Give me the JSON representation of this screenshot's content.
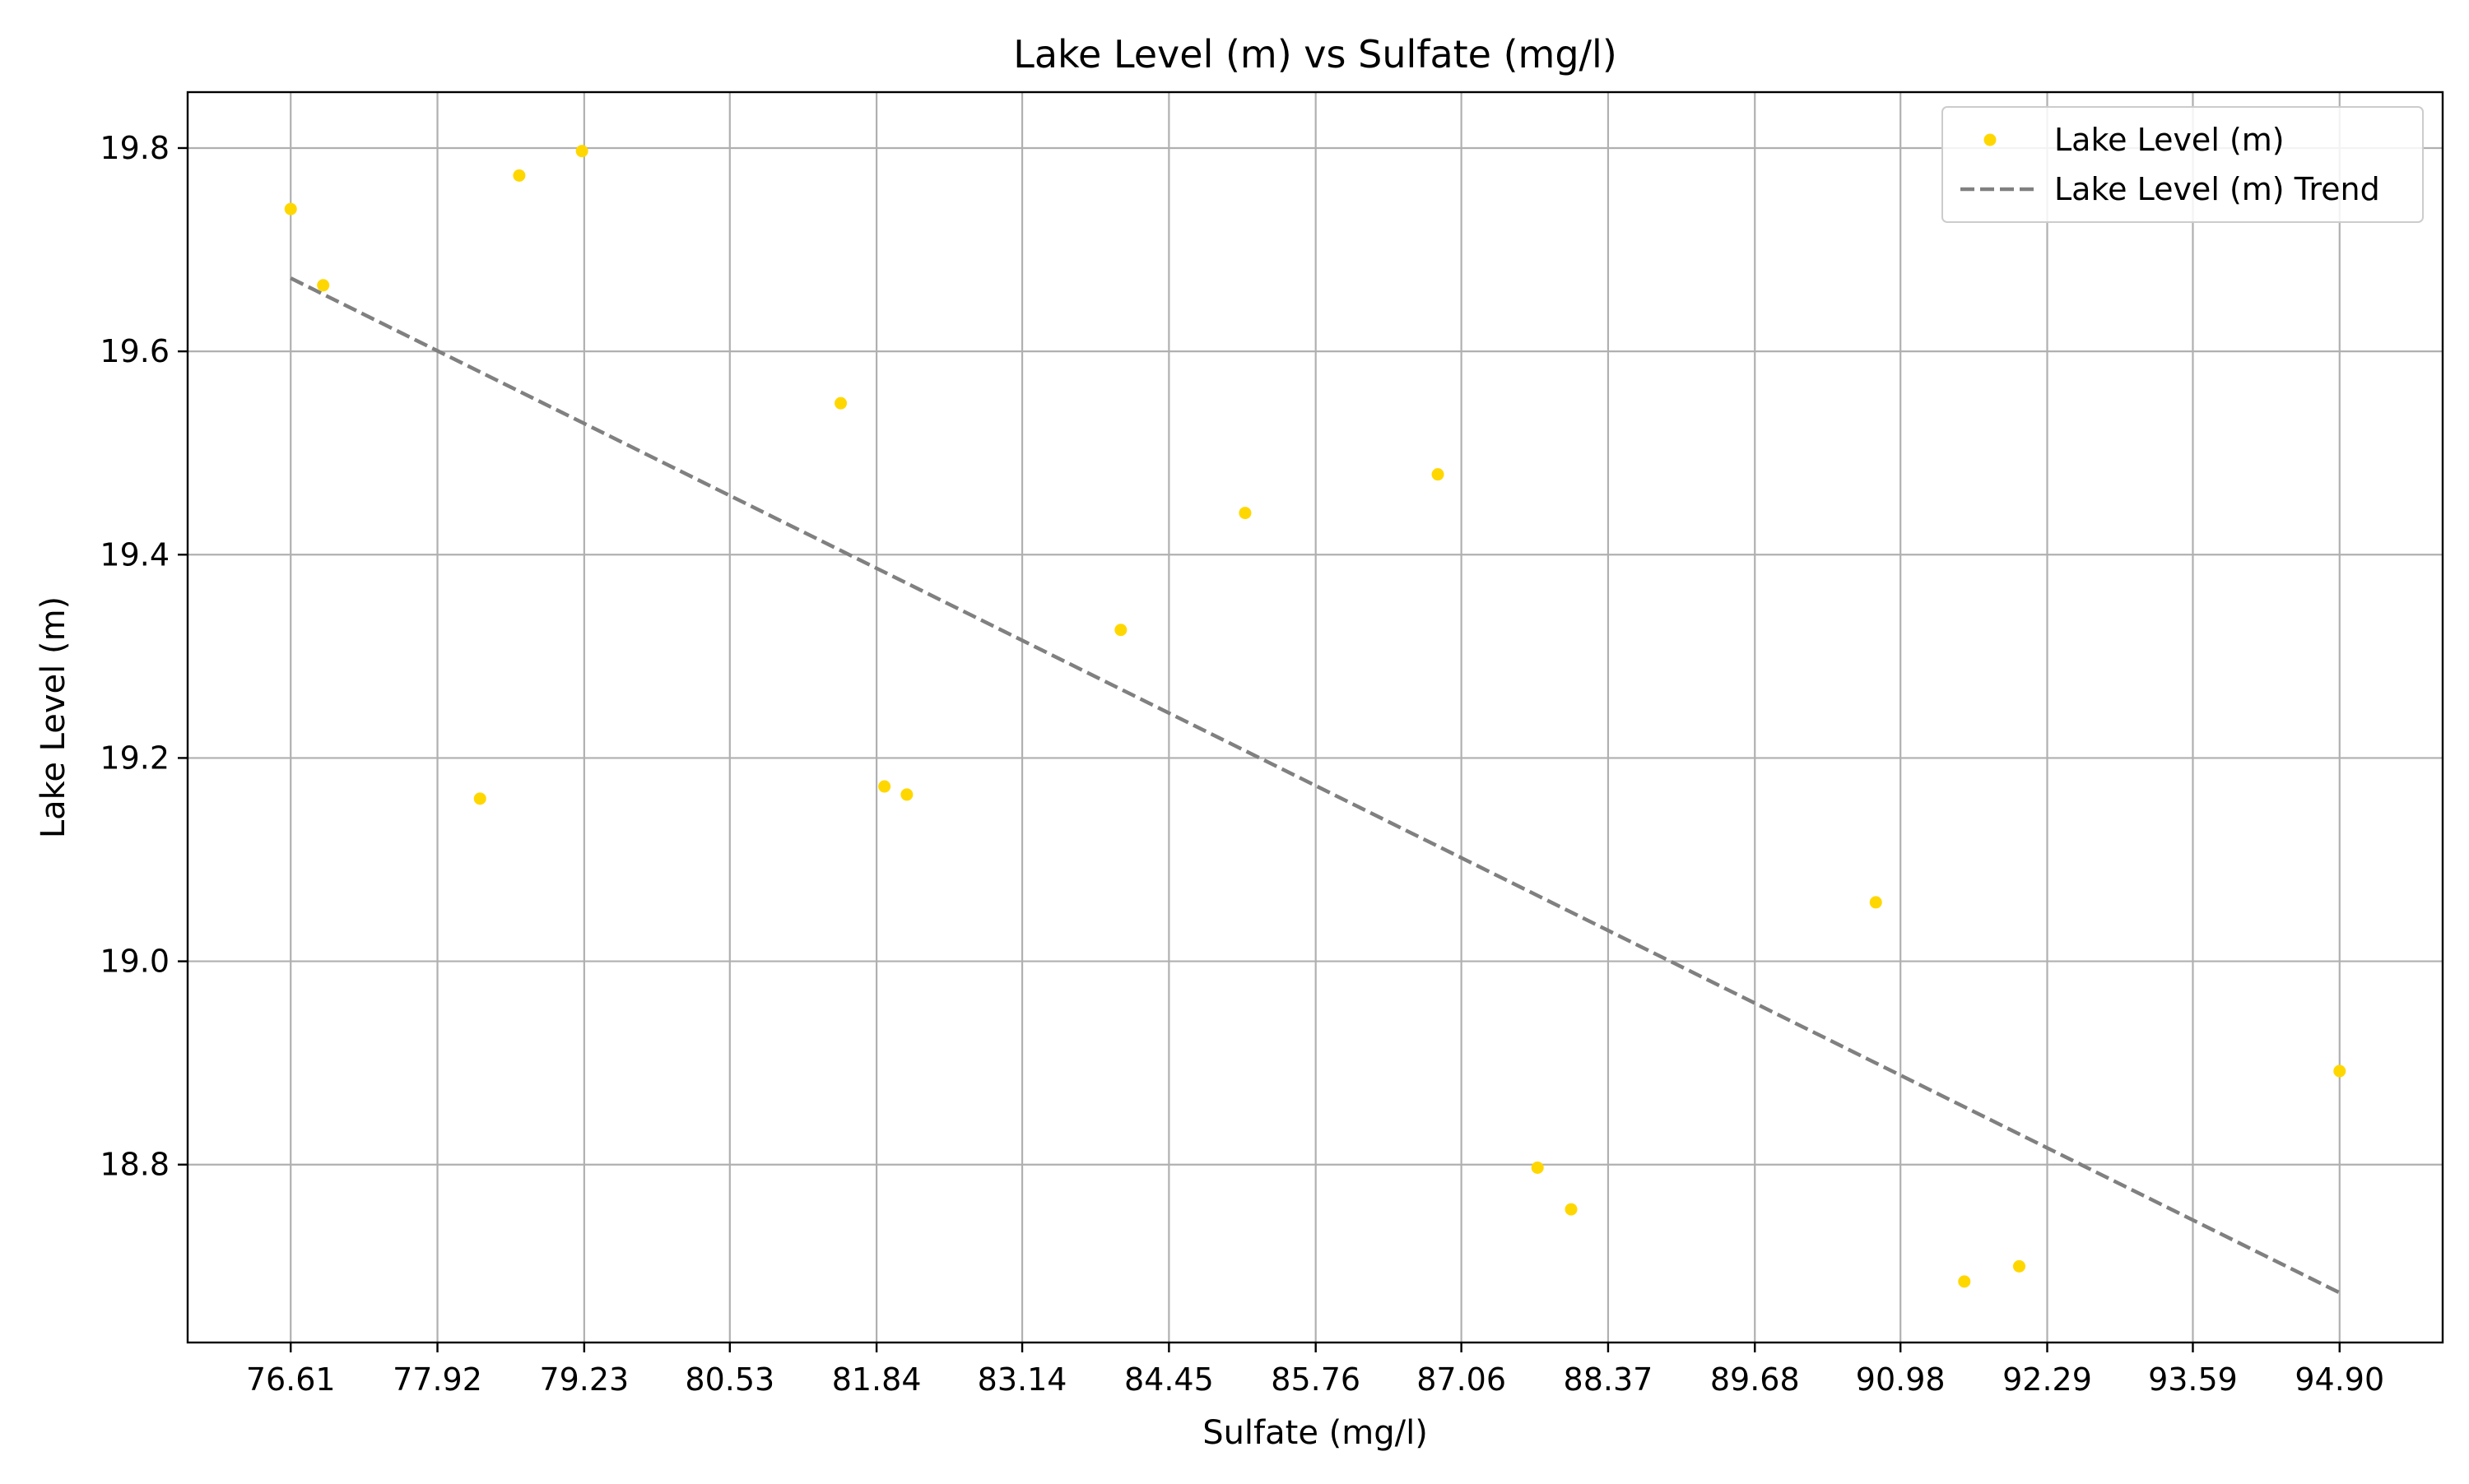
{
  "chart_data": {
    "type": "scatter",
    "title": "Lake Level (m) vs Sulfate (mg/l)",
    "xlabel": "Sulfate (mg/l)",
    "ylabel": "Lake Level (m)",
    "xlim": [
      75.69,
      95.82
    ],
    "ylim": [
      18.625,
      19.855
    ],
    "x_ticks": [
      "76.61",
      "77.92",
      "79.23",
      "80.53",
      "81.84",
      "83.14",
      "84.45",
      "85.76",
      "87.06",
      "88.37",
      "89.68",
      "90.98",
      "92.29",
      "93.59",
      "94.90"
    ],
    "y_ticks": [
      "18.8",
      "19.0",
      "19.2",
      "19.4",
      "19.6",
      "19.8"
    ],
    "grid": true,
    "legend_position": "top-right",
    "series": [
      {
        "name": "Lake Level (m)",
        "kind": "scatter",
        "color": "#FFD700",
        "points": [
          {
            "x": 76.61,
            "y": 19.74
          },
          {
            "x": 76.9,
            "y": 19.665
          },
          {
            "x": 78.3,
            "y": 19.16
          },
          {
            "x": 78.65,
            "y": 19.773
          },
          {
            "x": 79.21,
            "y": 19.797
          },
          {
            "x": 81.52,
            "y": 19.549
          },
          {
            "x": 81.91,
            "y": 19.172
          },
          {
            "x": 82.11,
            "y": 19.164
          },
          {
            "x": 84.02,
            "y": 19.326
          },
          {
            "x": 85.13,
            "y": 19.441
          },
          {
            "x": 86.85,
            "y": 19.479
          },
          {
            "x": 87.74,
            "y": 18.797
          },
          {
            "x": 88.04,
            "y": 18.756
          },
          {
            "x": 90.76,
            "y": 19.058
          },
          {
            "x": 91.55,
            "y": 18.685
          },
          {
            "x": 92.04,
            "y": 18.7
          },
          {
            "x": 94.9,
            "y": 18.892
          }
        ]
      },
      {
        "name": "Lake Level (m) Trend",
        "kind": "line",
        "style": "dashed",
        "color": "#808080",
        "points": [
          {
            "x": 76.61,
            "y": 19.672
          },
          {
            "x": 94.9,
            "y": 18.674
          }
        ]
      }
    ]
  }
}
